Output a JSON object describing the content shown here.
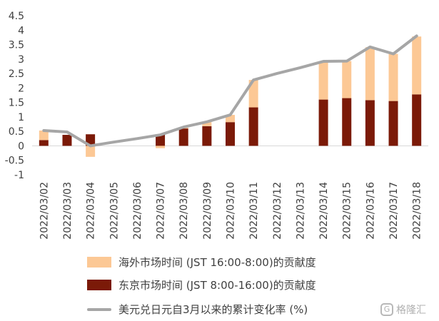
{
  "chart_data": {
    "type": "bar",
    "stacked": true,
    "categories": [
      "2022/03/02",
      "2022/03/03",
      "2022/03/04",
      "2022/03/05",
      "2022/03/06",
      "2022/03/07",
      "2022/03/08",
      "2022/03/09",
      "2022/03/10",
      "2022/03/11",
      "2022/03/12",
      "2022/03/13",
      "2022/03/14",
      "2022/03/15",
      "2022/03/16",
      "2022/03/17",
      "2022/03/18"
    ],
    "ylim": [
      -1,
      4.5
    ],
    "yticks": [
      "-1",
      "-0.5",
      "0",
      "0.5",
      "1",
      "1.5",
      "2",
      "2.5",
      "3",
      "3.5",
      "4",
      "4.5"
    ],
    "series": [
      {
        "name": "海外市场时间 (JST 16:00-8:00)的贡献度",
        "type": "bar",
        "color": "#fcc895",
        "values": [
          0.33,
          0.0,
          -0.38,
          null,
          null,
          -0.08,
          0.03,
          0.14,
          0.25,
          0.95,
          null,
          null,
          1.3,
          1.28,
          1.83,
          1.63,
          2.0
        ]
      },
      {
        "name": "东京市场时间 (JST 8:00-16:00)的贡献度",
        "type": "bar",
        "color": "#7b1a08",
        "values": [
          0.2,
          0.38,
          0.4,
          null,
          null,
          0.4,
          0.6,
          0.68,
          0.82,
          1.33,
          null,
          null,
          1.6,
          1.65,
          1.58,
          1.55,
          1.78
        ]
      },
      {
        "name": "美元兑日元自3月以来的累计变化率 (%)",
        "type": "line",
        "color": "#a6a6a6",
        "values": [
          0.53,
          0.48,
          0.0,
          0.13,
          0.25,
          0.38,
          0.65,
          0.83,
          1.07,
          2.28,
          2.5,
          2.7,
          2.92,
          2.93,
          3.42,
          3.18,
          3.8
        ]
      }
    ]
  },
  "watermark": {
    "text": "格隆汇",
    "logo_glyph": "G"
  }
}
